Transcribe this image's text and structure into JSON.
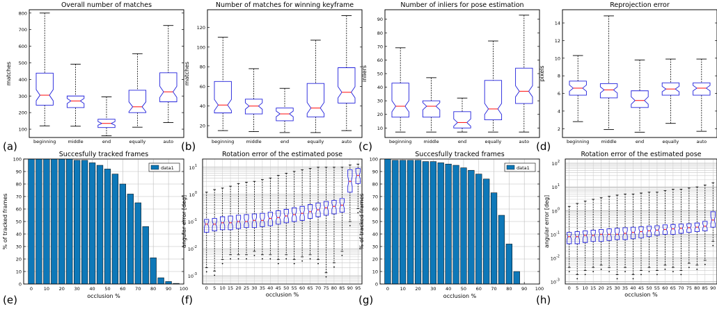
{
  "chart_data": [
    {
      "panel": "(a)",
      "type": "boxplot",
      "title": "Overall number of matches",
      "ylabel": "matches",
      "xlabel": "",
      "ylim": [
        50,
        820
      ],
      "yticks": [
        100,
        200,
        300,
        400,
        500,
        600,
        700,
        800
      ],
      "categories": [
        "beginning",
        "middle",
        "end",
        "equally",
        "auto"
      ],
      "boxes": [
        {
          "min": 120,
          "q1": 245,
          "med": 305,
          "q3": 438,
          "max": 800
        },
        {
          "min": 118,
          "q1": 230,
          "med": 270,
          "q3": 300,
          "max": 492
        },
        {
          "min": 60,
          "q1": 110,
          "med": 135,
          "q3": 160,
          "max": 295
        },
        {
          "min": 112,
          "q1": 200,
          "med": 235,
          "q3": 335,
          "max": 555
        },
        {
          "min": 140,
          "q1": 265,
          "med": 325,
          "q3": 440,
          "max": 725
        }
      ]
    },
    {
      "panel": "(b)",
      "type": "boxplot",
      "title": "Number of matches for winning keyframe",
      "ylabel": "matches",
      "xlabel": "",
      "ylim": [
        8,
        138
      ],
      "yticks": [
        20,
        40,
        60,
        80,
        100,
        120
      ],
      "categories": [
        "beginning",
        "middle",
        "end",
        "equally",
        "auto"
      ],
      "boxes": [
        {
          "min": 15,
          "q1": 33,
          "med": 41,
          "q3": 65,
          "max": 110
        },
        {
          "min": 14,
          "q1": 32,
          "med": 40,
          "q3": 47,
          "max": 78
        },
        {
          "min": 13,
          "q1": 25,
          "med": 32,
          "q3": 38,
          "max": 58
        },
        {
          "min": 13,
          "q1": 29,
          "med": 38,
          "q3": 63,
          "max": 107
        },
        {
          "min": 15,
          "q1": 43,
          "med": 54,
          "q3": 79,
          "max": 132
        }
      ]
    },
    {
      "panel": "(c)",
      "type": "boxplot",
      "title": "Number of inliers for pose estimation",
      "ylabel": "inliers",
      "xlabel": "",
      "ylim": [
        3,
        97
      ],
      "yticks": [
        10,
        20,
        30,
        40,
        50,
        60,
        70,
        80,
        90
      ],
      "categories": [
        "beginning",
        "middle",
        "end",
        "equally",
        "auto"
      ],
      "boxes": [
        {
          "min": 7,
          "q1": 18,
          "med": 26,
          "q3": 43,
          "max": 69
        },
        {
          "min": 7,
          "q1": 18,
          "med": 26,
          "q3": 30,
          "max": 47
        },
        {
          "min": 7,
          "q1": 10,
          "med": 14,
          "q3": 22,
          "max": 32
        },
        {
          "min": 7,
          "q1": 16,
          "med": 24,
          "q3": 45,
          "max": 74
        },
        {
          "min": 7,
          "q1": 28,
          "med": 37,
          "q3": 54,
          "max": 93
        }
      ]
    },
    {
      "panel": "(d)",
      "type": "boxplot",
      "title": "Reprojection error",
      "ylabel": "pixels",
      "xlabel": "",
      "ylim": [
        1,
        15.5
      ],
      "yticks": [
        2,
        4,
        6,
        8,
        10,
        12,
        14
      ],
      "categories": [
        "beginning",
        "middle",
        "end",
        "equally",
        "auto"
      ],
      "boxes": [
        {
          "min": 2.8,
          "q1": 5.8,
          "med": 6.6,
          "q3": 7.4,
          "max": 10.3
        },
        {
          "min": 1.9,
          "q1": 5.5,
          "med": 6.4,
          "q3": 7.1,
          "max": 14.8
        },
        {
          "min": 1.6,
          "q1": 4.4,
          "med": 5.2,
          "q3": 6.3,
          "max": 9.8
        },
        {
          "min": 2.6,
          "q1": 5.8,
          "med": 6.5,
          "q3": 7.2,
          "max": 9.9
        },
        {
          "min": 1.7,
          "q1": 5.8,
          "med": 6.6,
          "q3": 7.2,
          "max": 9.9
        }
      ]
    },
    {
      "panel": "(e)",
      "type": "bar",
      "title": "Succesfully tracked frames",
      "xlabel": "occlusion %",
      "ylabel": "% of tracked frames",
      "ylim": [
        0,
        100
      ],
      "yticks": [
        0,
        10,
        20,
        30,
        40,
        50,
        60,
        70,
        80,
        90,
        100
      ],
      "xlim": [
        -5,
        100
      ],
      "xticks": [
        0,
        10,
        20,
        30,
        40,
        50,
        60,
        70,
        80,
        90,
        100
      ],
      "legend": "data1",
      "legend_position": "top-right",
      "color": "#0e78b8",
      "x": [
        0,
        5,
        10,
        15,
        20,
        25,
        30,
        35,
        40,
        45,
        50,
        55,
        60,
        65,
        70,
        75,
        80,
        85,
        90,
        95
      ],
      "values": [
        100,
        100,
        100,
        100,
        100,
        100,
        99,
        99,
        97,
        95,
        92,
        88,
        80,
        72,
        65,
        46,
        21,
        5,
        2,
        0.5
      ]
    },
    {
      "panel": "(f)",
      "type": "boxplot",
      "title": "Rotation error of the estimated pose",
      "xlabel": "occlusion %",
      "ylabel": "angular error [deg]",
      "scale": "log",
      "ylim": [
        0.0005,
        20
      ],
      "ytick_labels": [
        {
          "label": "10",
          "exp": "-3",
          "value": 0.001
        },
        {
          "label": "10",
          "exp": "-2",
          "value": 0.01
        },
        {
          "label": "10",
          "exp": "-1",
          "value": 0.1
        },
        {
          "label": "10",
          "exp": "0",
          "value": 1
        },
        {
          "label": "10",
          "exp": "1",
          "value": 10
        }
      ],
      "categories": [
        "0",
        "5",
        "10",
        "15",
        "20",
        "25",
        "30",
        "35",
        "40",
        "45",
        "50",
        "55",
        "60",
        "65",
        "70",
        "75",
        "80",
        "85",
        "90",
        "95"
      ],
      "boxes": [
        {
          "min": 0.002,
          "q1": 0.04,
          "med": 0.08,
          "q3": 0.12,
          "max": 1.2
        },
        {
          "min": 0.0015,
          "q1": 0.045,
          "med": 0.08,
          "q3": 0.13,
          "max": 1.5
        },
        {
          "min": 0.004,
          "q1": 0.05,
          "med": 0.09,
          "q3": 0.15,
          "max": 1.7
        },
        {
          "min": 0.006,
          "q1": 0.05,
          "med": 0.09,
          "q3": 0.16,
          "max": 2.0
        },
        {
          "min": 0.006,
          "q1": 0.055,
          "med": 0.1,
          "q3": 0.17,
          "max": 2.5
        },
        {
          "min": 0.006,
          "q1": 0.06,
          "med": 0.1,
          "q3": 0.18,
          "max": 2.8
        },
        {
          "min": 0.008,
          "q1": 0.06,
          "med": 0.11,
          "q3": 0.19,
          "max": 3.0
        },
        {
          "min": 0.006,
          "q1": 0.065,
          "med": 0.11,
          "q3": 0.2,
          "max": 3.5
        },
        {
          "min": 0.006,
          "q1": 0.07,
          "med": 0.13,
          "q3": 0.22,
          "max": 4.0
        },
        {
          "min": 0.004,
          "q1": 0.08,
          "med": 0.14,
          "q3": 0.25,
          "max": 5.0
        },
        {
          "min": 0.006,
          "q1": 0.09,
          "med": 0.16,
          "q3": 0.28,
          "max": 6.0
        },
        {
          "min": 0.004,
          "q1": 0.1,
          "med": 0.18,
          "q3": 0.32,
          "max": 7.0
        },
        {
          "min": 0.005,
          "q1": 0.11,
          "med": 0.2,
          "q3": 0.36,
          "max": 8.0
        },
        {
          "min": 0.006,
          "q1": 0.13,
          "med": 0.23,
          "q3": 0.42,
          "max": 9.0
        },
        {
          "min": 0.004,
          "q1": 0.15,
          "med": 0.27,
          "q3": 0.48,
          "max": 10.0
        },
        {
          "min": 0.0013,
          "q1": 0.17,
          "med": 0.32,
          "q3": 0.55,
          "max": 10.0
        },
        {
          "min": 0.003,
          "q1": 0.19,
          "med": 0.36,
          "q3": 0.6,
          "max": 10.0
        },
        {
          "min": 0.008,
          "q1": 0.22,
          "med": 0.4,
          "q3": 0.7,
          "max": 10.0
        },
        {
          "min": 0.1,
          "q1": 1.2,
          "med": 3.0,
          "q3": 8.0,
          "max": 12.0
        },
        {
          "min": 0.3,
          "q1": 2.5,
          "med": 5.0,
          "q3": 9.0,
          "max": 13.0
        }
      ]
    },
    {
      "panel": "(g)",
      "type": "bar",
      "title": "Succesfully tracked frames",
      "xlabel": "occlusion %",
      "ylabel": "% of tracked frames",
      "ylim": [
        0,
        100
      ],
      "yticks": [
        0,
        10,
        20,
        30,
        40,
        50,
        60,
        70,
        80,
        90,
        100
      ],
      "xlim": [
        -5,
        100
      ],
      "xticks": [
        0,
        10,
        20,
        30,
        40,
        50,
        60,
        70,
        80,
        90,
        100
      ],
      "legend": "data1",
      "legend_position": "top-right",
      "color": "#0e78b8",
      "x": [
        0,
        5,
        10,
        15,
        20,
        25,
        30,
        35,
        40,
        45,
        50,
        55,
        60,
        65,
        70,
        75,
        80,
        85,
        90,
        95
      ],
      "values": [
        100,
        99,
        99,
        99,
        99,
        98,
        98,
        97,
        96,
        95,
        93,
        91,
        88,
        84,
        73,
        55,
        32,
        10,
        0,
        0
      ]
    },
    {
      "panel": "(h)",
      "type": "boxplot",
      "title": "Rotation error of the estimated pose",
      "xlabel": "occlusion %",
      "ylabel": "angular error [deg]",
      "scale": "log",
      "ylim": [
        0.0008,
        150
      ],
      "ytick_labels": [
        {
          "label": "10",
          "exp": "-3",
          "value": 0.001
        },
        {
          "label": "10",
          "exp": "-2",
          "value": 0.01
        },
        {
          "label": "10",
          "exp": "-1",
          "value": 0.1
        },
        {
          "label": "10",
          "exp": "0",
          "value": 1
        },
        {
          "label": "10",
          "exp": "1",
          "value": 10
        },
        {
          "label": "10",
          "exp": "2",
          "value": 100
        }
      ],
      "categories": [
        "0",
        "5",
        "10",
        "15",
        "20",
        "25",
        "30",
        "35",
        "40",
        "45",
        "50",
        "55",
        "60",
        "65",
        "70",
        "75",
        "80",
        "85",
        "90"
      ],
      "boxes": [
        {
          "min": 0.004,
          "q1": 0.04,
          "med": 0.08,
          "q3": 0.12,
          "max": 1.5
        },
        {
          "min": 0.002,
          "q1": 0.04,
          "med": 0.08,
          "q3": 0.13,
          "max": 2.0
        },
        {
          "min": 0.003,
          "q1": 0.045,
          "med": 0.09,
          "q3": 0.14,
          "max": 2.5
        },
        {
          "min": 0.004,
          "q1": 0.05,
          "med": 0.09,
          "q3": 0.15,
          "max": 3.0
        },
        {
          "min": 0.005,
          "q1": 0.05,
          "med": 0.1,
          "q3": 0.16,
          "max": 3.5
        },
        {
          "min": 0.004,
          "q1": 0.055,
          "med": 0.1,
          "q3": 0.17,
          "max": 4.0
        },
        {
          "min": 0.002,
          "q1": 0.06,
          "med": 0.1,
          "q3": 0.18,
          "max": 4.5
        },
        {
          "min": 0.004,
          "q1": 0.06,
          "med": 0.11,
          "q3": 0.19,
          "max": 5.0
        },
        {
          "min": 0.002,
          "q1": 0.065,
          "med": 0.12,
          "q3": 0.2,
          "max": 5.0
        },
        {
          "min": 0.003,
          "q1": 0.07,
          "med": 0.13,
          "q3": 0.21,
          "max": 5.5
        },
        {
          "min": 0.004,
          "q1": 0.08,
          "med": 0.14,
          "q3": 0.22,
          "max": 6.0
        },
        {
          "min": 0.003,
          "q1": 0.09,
          "med": 0.15,
          "q3": 0.23,
          "max": 6.0
        },
        {
          "min": 0.005,
          "q1": 0.1,
          "med": 0.16,
          "q3": 0.25,
          "max": 7.0
        },
        {
          "min": 0.004,
          "q1": 0.1,
          "med": 0.17,
          "q3": 0.26,
          "max": 8.0
        },
        {
          "min": 0.003,
          "q1": 0.11,
          "med": 0.18,
          "q3": 0.27,
          "max": 8.0
        },
        {
          "min": 0.006,
          "q1": 0.12,
          "med": 0.19,
          "q3": 0.28,
          "max": 9.0
        },
        {
          "min": 0.005,
          "q1": 0.13,
          "med": 0.2,
          "q3": 0.3,
          "max": 10.0
        },
        {
          "min": 0.008,
          "q1": 0.14,
          "med": 0.22,
          "q3": 0.35,
          "max": 12.0
        },
        {
          "min": 0.05,
          "q1": 0.2,
          "med": 0.4,
          "q3": 0.9,
          "max": 15.0
        }
      ]
    }
  ]
}
